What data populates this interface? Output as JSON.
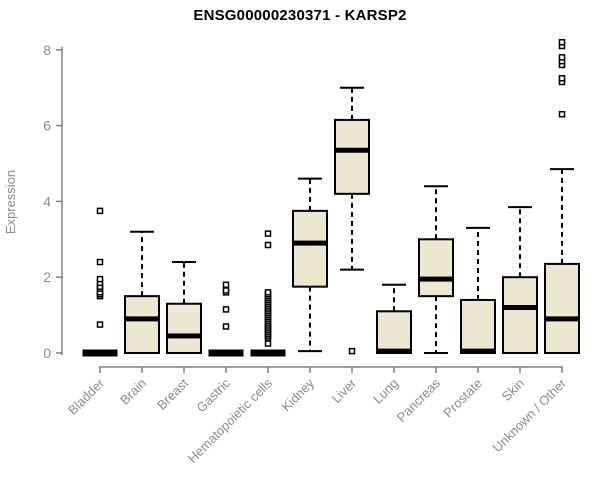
{
  "title": "ENSG00000230371 - KARSP2",
  "chart_data": {
    "type": "boxplot",
    "title": "ENSG00000230371 - KARSP2",
    "xlabel": "",
    "ylabel": "Expression",
    "ylim": [
      0,
      8
    ],
    "yticks": [
      0,
      2,
      4,
      6,
      8
    ],
    "grid": false,
    "legend": "none",
    "categories": [
      "Bladder",
      "Brain",
      "Breast",
      "Gastric",
      "Hematopoietic cells",
      "Kidney",
      "Liver",
      "Lung",
      "Pancreas",
      "Prostate",
      "Skin",
      "Unknown / Other"
    ],
    "series": [
      {
        "category": "Bladder",
        "min": 0,
        "q1": 0,
        "median": 0,
        "q3": 0,
        "max": 0,
        "outliers": [
          0.75,
          1.5,
          1.55,
          1.6,
          1.7,
          1.75,
          1.85,
          1.95,
          2.4,
          3.75
        ]
      },
      {
        "category": "Brain",
        "min": 0,
        "q1": 0,
        "median": 0.9,
        "q3": 1.5,
        "max": 3.2,
        "outliers": []
      },
      {
        "category": "Breast",
        "min": 0,
        "q1": 0,
        "median": 0.45,
        "q3": 1.3,
        "max": 2.4,
        "outliers": []
      },
      {
        "category": "Gastric",
        "min": 0,
        "q1": 0,
        "median": 0,
        "q3": 0,
        "max": 0,
        "outliers": [
          0.7,
          1.15,
          1.6,
          1.65,
          1.8
        ]
      },
      {
        "category": "Hematopoietic cells",
        "min": 0,
        "q1": 0,
        "median": 0,
        "q3": 0,
        "max": 0,
        "outliers": [
          0.25,
          0.4,
          0.45,
          0.5,
          0.55,
          0.6,
          0.65,
          0.7,
          0.75,
          0.8,
          0.85,
          0.9,
          0.95,
          1.0,
          1.05,
          1.1,
          1.15,
          1.2,
          1.25,
          1.3,
          1.35,
          1.4,
          1.45,
          1.5,
          1.55,
          1.6,
          2.85,
          3.15
        ]
      },
      {
        "category": "Kidney",
        "min": 0.05,
        "q1": 1.75,
        "median": 2.9,
        "q3": 3.75,
        "max": 4.6,
        "outliers": []
      },
      {
        "category": "Liver",
        "min": 2.2,
        "q1": 4.2,
        "median": 5.35,
        "q3": 6.15,
        "max": 7.0,
        "outliers": [
          0.05
        ]
      },
      {
        "category": "Lung",
        "min": 0,
        "q1": 0,
        "median": 0.05,
        "q3": 1.1,
        "max": 1.8,
        "outliers": []
      },
      {
        "category": "Pancreas",
        "min": 0,
        "q1": 1.5,
        "median": 1.95,
        "q3": 3.0,
        "max": 4.4,
        "outliers": []
      },
      {
        "category": "Prostate",
        "min": 0,
        "q1": 0,
        "median": 0.05,
        "q3": 1.4,
        "max": 3.3,
        "outliers": []
      },
      {
        "category": "Skin",
        "min": 0,
        "q1": 0,
        "median": 1.2,
        "q3": 2.0,
        "max": 3.85,
        "outliers": []
      },
      {
        "category": "Unknown / Other",
        "min": 0,
        "q1": 0,
        "median": 0.9,
        "q3": 2.35,
        "max": 4.85,
        "outliers": [
          6.3,
          7.15,
          7.25,
          7.6,
          7.7,
          7.8,
          8.1,
          8.2
        ]
      }
    ],
    "colors": {
      "box_fill": "#ede8d0",
      "box_border": "#000000",
      "median": "#000000",
      "whisker": "#000000",
      "outlier_fill": "#ffffff",
      "axis_line": "#808080",
      "tick_text": "#8b8b8b",
      "title_text": "#000000"
    }
  }
}
